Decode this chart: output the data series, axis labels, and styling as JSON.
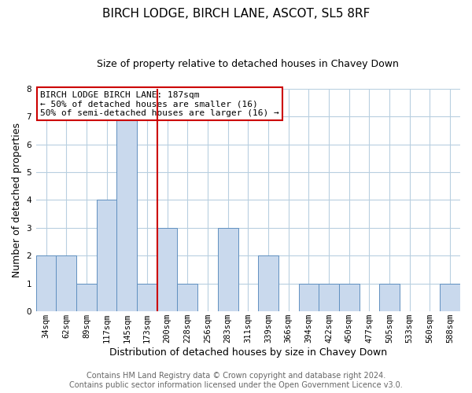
{
  "title": "BIRCH LODGE, BIRCH LANE, ASCOT, SL5 8RF",
  "subtitle": "Size of property relative to detached houses in Chavey Down",
  "xlabel": "Distribution of detached houses by size in Chavey Down",
  "ylabel": "Number of detached properties",
  "bin_labels": [
    "34sqm",
    "62sqm",
    "89sqm",
    "117sqm",
    "145sqm",
    "173sqm",
    "200sqm",
    "228sqm",
    "256sqm",
    "283sqm",
    "311sqm",
    "339sqm",
    "366sqm",
    "394sqm",
    "422sqm",
    "450sqm",
    "477sqm",
    "505sqm",
    "533sqm",
    "560sqm",
    "588sqm"
  ],
  "bar_heights": [
    2,
    2,
    1,
    4,
    7,
    1,
    3,
    1,
    0,
    3,
    0,
    2,
    0,
    1,
    1,
    1,
    0,
    1,
    0,
    0,
    1
  ],
  "bar_color": "#c9d9ed",
  "bar_edge_color": "#6090c0",
  "vline_x_index": 5.5,
  "vline_color": "#cc0000",
  "annotation_title": "BIRCH LODGE BIRCH LANE: 187sqm",
  "annotation_line1": "← 50% of detached houses are smaller (16)",
  "annotation_line2": "50% of semi-detached houses are larger (16) →",
  "annotation_box_color": "#ffffff",
  "annotation_box_edge": "#cc0000",
  "ylim": [
    0,
    8
  ],
  "yticks": [
    0,
    1,
    2,
    3,
    4,
    5,
    6,
    7,
    8
  ],
  "footer1": "Contains HM Land Registry data © Crown copyright and database right 2024.",
  "footer2": "Contains public sector information licensed under the Open Government Licence v3.0.",
  "background_color": "#ffffff",
  "grid_color": "#b8cfe0",
  "title_fontsize": 11,
  "subtitle_fontsize": 9,
  "xlabel_fontsize": 9,
  "ylabel_fontsize": 9,
  "tick_fontsize": 7.5,
  "annotation_fontsize": 8,
  "footer_fontsize": 7
}
